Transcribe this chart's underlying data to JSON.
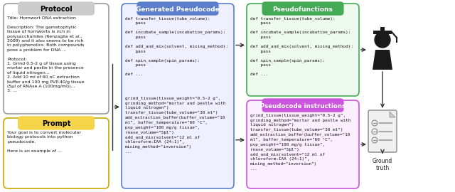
{
  "bg_color": "#ffffff",
  "protocol_content_bold": [
    "Title:",
    "Description:",
    "Protocol:"
  ],
  "protocol_title": "Protocol",
  "protocol_title_bg": "#cccccc",
  "protocol_border": "#999999",
  "protocol_text": "Title: Hornwort DNA extraction\n\nDescription: The gametophytic\ntissue of hornworts is rich in\npolysaccharides (Renzaglia et al.,\n2009) and it also seems to be rich\nin polyphenolics. Both compounds\npose a problem for DNA ...\n\nProtocol:\n1. Grind 0.5-2 g of tissue using\nmortar and pestle in the presence\nof liquid nitrogen...\n2. Add 10 ml of 60 oC extraction\nbuffer and 100 mg PVP-40/g tissue\n(5μl of RNAse A (100mg/ml))...\n3. ...",
  "prompt_title": "Prompt",
  "prompt_title_bg": "#f5d44a",
  "prompt_border": "#c8a800",
  "prompt_text": "Your goal is to convert molecular\nbiology protocols into python\npseudocode.\n\nHere is an example of ...",
  "pseudo_title": "Generated Pseudocode",
  "pseudo_title_bg": "#5b7fcc",
  "pseudo_border": "#5b7fcc",
  "pseudo_fill": "#eef0ff",
  "pseudo_text_top": "def transfer_tissue(tube_volume):\n    pass\n\ndef incubate_sample(incubation_params):\n    pass\n\ndef add_and_mix(solvent, mixing_method):\n    pass\n\ndef spin_sample(spin_params):\n    pass\n\ndef ...",
  "pseudo_text_bottom": "grind_tissue(tissue_weight=\"0.5-2 g\",\ngrinding_method=\"mortar and pestle with\nliquid nitrogen\")\ntransfer_tissue(tube_volume=\"30 ml\")\nadd_extraction_buffer(buffer_volume=\"10\nml\", buffer_temperature=\"60 °C\",\npvp_weight=\"100 mg/g tissue\",\nrnase_volume=\"5μl\")\nadd_and_mix(solvent=\"12 ml of\nchloroform:IAA (24:1)\",\nmixing_method=\"inversion\")\n...",
  "pfunc_title": "Pseudofunctions",
  "pfunc_title_bg": "#44aa55",
  "pfunc_border": "#44aa55",
  "pfunc_fill": "#edfaed",
  "pfunc_text": "def transfer_tissue(tube_volume):\n    pass\n\ndef incubate_sample(incubation_params):\n    pass\n\ndef add_and_mix(solvent, mixing_method):\n    pass\n\ndef spin_sample(spin_params):\n    pass\n\ndef ...",
  "pinstr_title": "Pseudocode instructions",
  "pinstr_title_bg": "#cc55dd",
  "pinstr_border": "#cc55dd",
  "pinstr_fill": "#faeeff",
  "pinstr_text": "grind_tissue(tissue_weight=\"0.5-2 g\",\ngrinding_method=\"mortar and pestle with\nliquid nitrogen\")\ntransfer_tissue(tube_volume=\"30 ml\")\nadd_extraction_buffer(buffer_volume=\"10\nml\", buffer_temperature=\"60 °C\",\npvp_weight=\"100 mg/g tissue\",\nrnase_volume=\"5μl\")\nadd_and_mix(solvent=\"12 ml of\nchloroform:IAA (24:1)\",\nmixing_method=\"inversion\")\n..."
}
